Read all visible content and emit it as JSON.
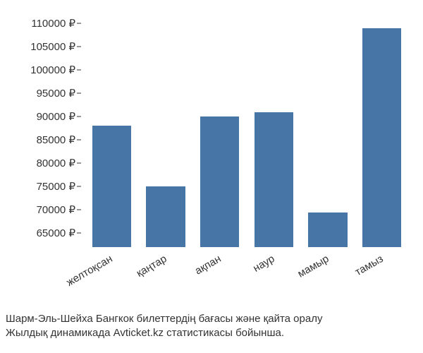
{
  "chart": {
    "type": "bar",
    "categories": [
      "желтоқсан",
      "қаңтар",
      "ақпан",
      "наур",
      "мамыр",
      "тамыз"
    ],
    "values": [
      88000,
      75000,
      90000,
      91000,
      69500,
      109000
    ],
    "bar_color": "#4776a6",
    "background_color": "#ffffff",
    "text_color": "#333333",
    "currency_symbol": "₽",
    "y_ticks": [
      65000,
      70000,
      75000,
      80000,
      85000,
      90000,
      95000,
      100000,
      105000,
      110000
    ],
    "ylim": [
      62000,
      112000
    ],
    "bar_width_ratio": 0.72,
    "font_size_axis": 15,
    "x_label_rotation_deg": -30
  },
  "caption": {
    "line1": "Шарм-Эль-Шейха Бангкок билеттердің бағасы және қайта оралу",
    "line2": "Жылдық динамикада Avticket.kz статистикасы бойынша."
  }
}
